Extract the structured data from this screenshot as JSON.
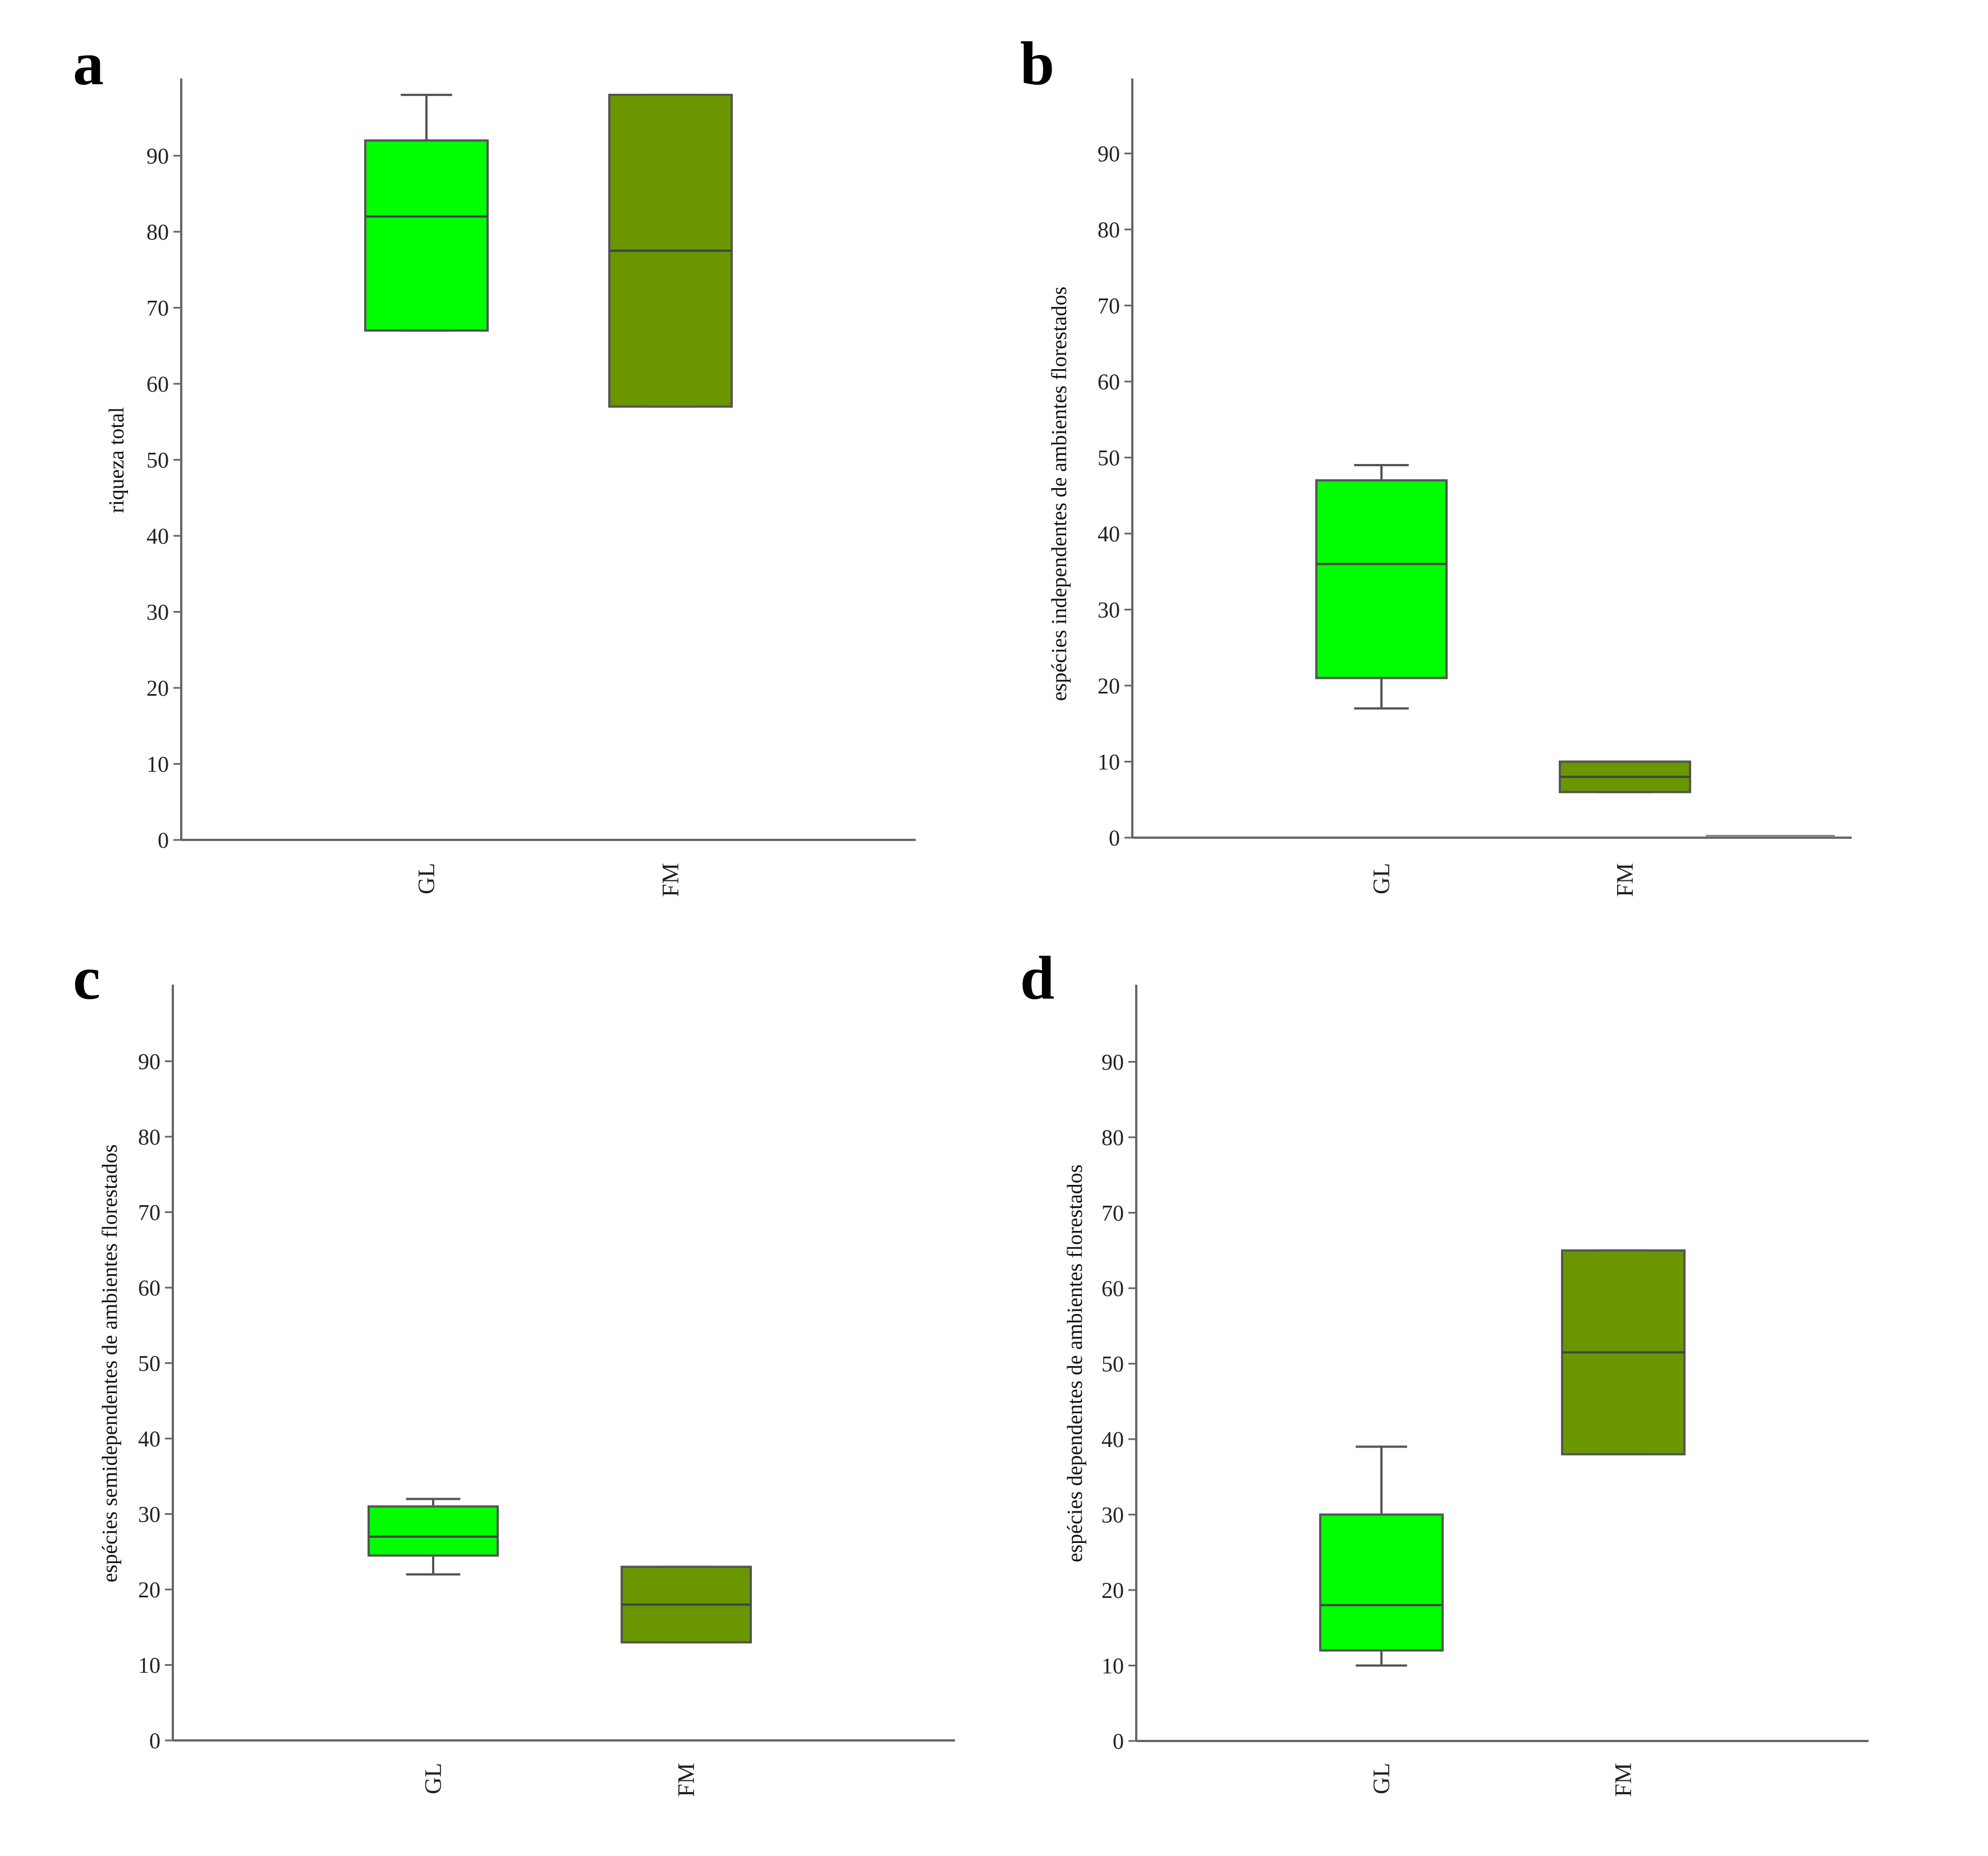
{
  "colors": {
    "GL": "#00ff00",
    "FM": "#6a9700"
  },
  "chart_data": [
    {
      "type": "box",
      "panel": "a",
      "ylabel": "riqueza total",
      "ylim": [
        0,
        100
      ],
      "yticks": [
        0,
        10,
        20,
        30,
        40,
        50,
        60,
        70,
        80,
        90
      ],
      "categories": [
        "GL",
        "FM"
      ],
      "boxes": [
        {
          "category": "GL",
          "min": 67,
          "q1": 67,
          "median": 82,
          "q3": 92,
          "max": 98
        },
        {
          "category": "FM",
          "min": 57,
          "q1": 57,
          "median": 77.5,
          "q3": 98,
          "max": 98
        }
      ]
    },
    {
      "type": "box",
      "panel": "b",
      "ylabel": "espécies independentes de ambientes florestados",
      "ylim": [
        0,
        100
      ],
      "yticks": [
        0,
        10,
        20,
        30,
        40,
        50,
        60,
        70,
        80,
        90
      ],
      "categories": [
        "GL",
        "FM"
      ],
      "boxes": [
        {
          "category": "GL",
          "min": 17,
          "q1": 21,
          "median": 36,
          "q3": 47,
          "max": 49
        },
        {
          "category": "FM",
          "min": 6,
          "q1": 6,
          "median": 8,
          "q3": 10,
          "max": 10
        }
      ]
    },
    {
      "type": "box",
      "panel": "c",
      "ylabel": "espécies semidependentes de ambientes florestados",
      "ylim": [
        0,
        100
      ],
      "yticks": [
        0,
        10,
        20,
        30,
        40,
        50,
        60,
        70,
        80,
        90
      ],
      "categories": [
        "GL",
        "FM"
      ],
      "boxes": [
        {
          "category": "GL",
          "min": 22,
          "q1": 24.5,
          "median": 27,
          "q3": 31,
          "max": 32
        },
        {
          "category": "FM",
          "min": 13,
          "q1": 13,
          "median": 18,
          "q3": 23,
          "max": 23
        }
      ]
    },
    {
      "type": "box",
      "panel": "d",
      "ylabel": "espécies dependentes de ambientes florestados",
      "ylim": [
        0,
        100
      ],
      "yticks": [
        0,
        10,
        20,
        30,
        40,
        50,
        60,
        70,
        80,
        90
      ],
      "categories": [
        "GL",
        "FM"
      ],
      "boxes": [
        {
          "category": "GL",
          "min": 10,
          "q1": 12,
          "median": 18,
          "q3": 30,
          "max": 39
        },
        {
          "category": "FM",
          "min": 38,
          "q1": 38,
          "median": 51.5,
          "q3": 65,
          "max": 65
        }
      ]
    }
  ]
}
